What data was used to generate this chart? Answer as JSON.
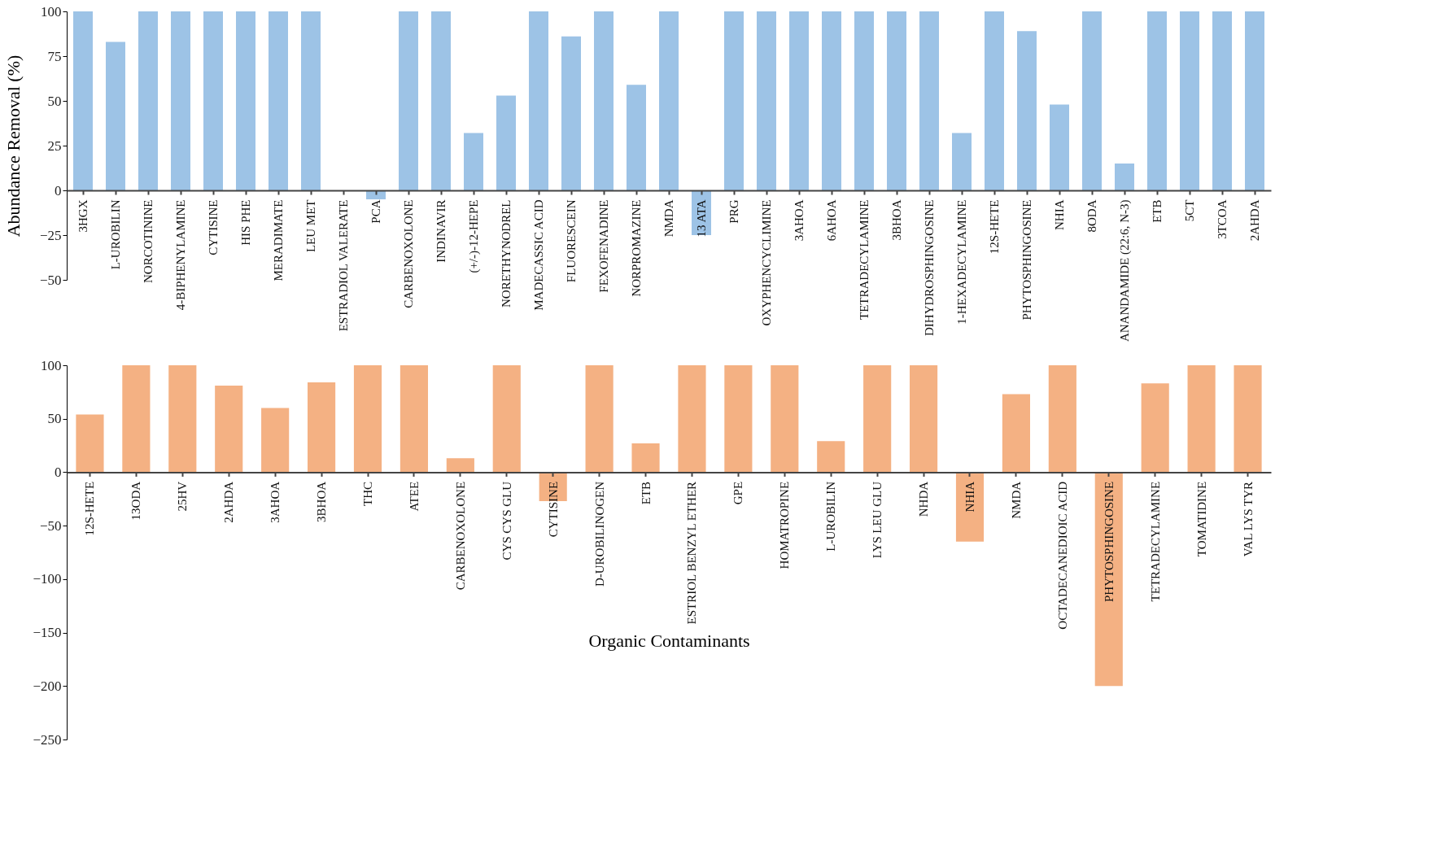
{
  "chart_data": [
    {
      "type": "bar",
      "ylabel": "Abundance Removal (%)",
      "categories": [
        "3HGX",
        "L-UROBILIN",
        "NORCOTININE",
        "4-BIPHENYLAMINE",
        "CYTISINE",
        "HIS PHE",
        "MERADIMATE",
        "LEU MET",
        "ESTRADIOL VALERATE",
        "PCA",
        "CARBENOXOLONE",
        "INDINAVIR",
        "(+/-)-12-HEPE",
        "NORETHYNODREL",
        "MADECASSIC ACID",
        "FLUORESCEIN",
        "FEXOFENADINE",
        "NORPROMAZINE",
        "NMDA",
        "13 ATA",
        "PRG",
        "OXYPHENCYCLIMINE",
        "3AHOA",
        "6AHOA",
        "TETRADECYLAMINE",
        "3BHOA",
        "DIHYDROSPHINGOSINE",
        "1-HEXADECYLAMINE",
        "12S-HETE",
        "PHYTOSPHINGOSINE",
        "NHIA",
        "8ODA",
        "ANANDAMIDE (22:6, N-3)",
        "ETB",
        "5CT",
        "3TCOA",
        "2AHDA"
      ],
      "series": [
        {
          "color": "#9dc3e6",
          "values": [
            100,
            83,
            100,
            100,
            100,
            100,
            100,
            100,
            0,
            -5,
            100,
            100,
            32,
            53,
            100,
            86,
            100,
            59,
            100,
            -25,
            100,
            100,
            100,
            100,
            100,
            100,
            100,
            32,
            100,
            89,
            48,
            100,
            15,
            100,
            100,
            100,
            100
          ]
        }
      ],
      "ylim": [
        -50,
        100
      ],
      "yticks": [
        -50,
        -25,
        0,
        25,
        50,
        75,
        100
      ],
      "grid": false
    },
    {
      "type": "bar",
      "xlabel": "Organic Contaminants",
      "categories": [
        "12S-HETE",
        "13ODA",
        "25HV",
        "2AHDA",
        "3AHOA",
        "3BHOA",
        "THC",
        "ATEE",
        "CARBENOXOLONE",
        "CYS CYS GLU",
        "CYTISINE",
        "D-UROBILINOGEN",
        "ETB",
        "ESTRIOL BENZYL ETHER",
        "GPE",
        "HOMATROPINE",
        "L-UROBILIN",
        "LYS LEU GLU",
        "NHDA",
        "NHIA",
        "NMDA",
        "OCTADECANEDIOIC ACID",
        "PHYTOSPHINGOSINE",
        "TETRADECYLAMINE",
        "TOMATIDINE",
        "VAL LYS TYR"
      ],
      "series": [
        {
          "color": "#f4b183",
          "values": [
            54,
            100,
            100,
            81,
            60,
            84,
            100,
            100,
            13,
            100,
            -27,
            100,
            27,
            100,
            100,
            100,
            29,
            100,
            100,
            -65,
            73,
            100,
            -200,
            83,
            100,
            100
          ]
        }
      ],
      "ylim": [
        -250,
        100
      ],
      "yticks": [
        -250,
        -200,
        -150,
        -100,
        -50,
        0,
        50,
        100
      ],
      "grid": false
    }
  ]
}
